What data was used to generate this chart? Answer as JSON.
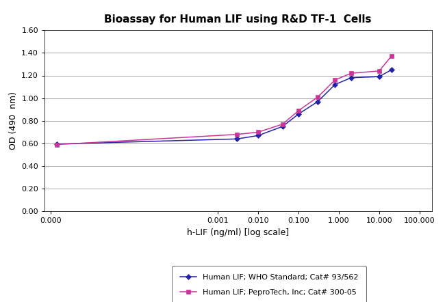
{
  "title": "Bioassay for Human LIF using R&D TF-1  Cells",
  "xlabel": "h-LIF (ng/ml) [log scale]",
  "ylabel": "OD (490  nm)",
  "ylim": [
    0.0,
    1.6
  ],
  "yticks": [
    0.0,
    0.2,
    0.4,
    0.6,
    0.8,
    1.0,
    1.2,
    1.4,
    1.6
  ],
  "series1": {
    "label": "Human LIF; WHO Standard; Cat# 93/562",
    "color": "#2222AA",
    "marker": "D",
    "x": [
      1e-07,
      0.003,
      0.01,
      0.04,
      0.1,
      0.3,
      0.8,
      2.0,
      10.0,
      20.0
    ],
    "y": [
      0.595,
      0.64,
      0.67,
      0.75,
      0.86,
      0.97,
      1.12,
      1.18,
      1.19,
      1.25
    ]
  },
  "series2": {
    "label": "Human LIF; PeproTech, Inc; Cat# 300-05",
    "color": "#CC3399",
    "marker": "s",
    "x": [
      1e-07,
      0.003,
      0.01,
      0.04,
      0.1,
      0.3,
      0.8,
      2.0,
      10.0,
      20.0
    ],
    "y": [
      0.59,
      0.68,
      0.7,
      0.77,
      0.89,
      1.01,
      1.16,
      1.22,
      1.24,
      1.37
    ]
  },
  "xtick_positions": [
    7e-08,
    0.001,
    0.01,
    0.1,
    1.0,
    10.0,
    100.0
  ],
  "xtick_labels": [
    "0.000",
    "0.001",
    "0.010",
    "0.100",
    "1.000",
    "10.000",
    "100.000"
  ],
  "background_color": "#ffffff",
  "grid_color": "#999999",
  "title_fontsize": 11,
  "axis_label_fontsize": 9,
  "tick_fontsize": 8,
  "legend_fontsize": 8
}
